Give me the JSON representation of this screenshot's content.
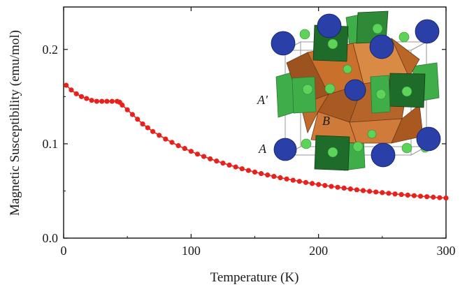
{
  "chart_data": {
    "type": "scatter",
    "title": "",
    "xlabel": "Temperature (K)",
    "ylabel": "Magnetic Susceptibility (emu/mol)",
    "xlim": [
      0,
      300
    ],
    "ylim": [
      0.0,
      0.245
    ],
    "x_ticks": [
      0,
      100,
      200,
      300
    ],
    "x_tick_labels": [
      "0",
      "100",
      "200",
      "300"
    ],
    "y_ticks": [
      0.0,
      0.1,
      0.2
    ],
    "y_tick_labels": [
      "0.0",
      "0.1",
      "0.2"
    ],
    "grid": false,
    "legend": "none",
    "series": [
      {
        "color": "#e8211d",
        "marker": "circle",
        "connected": true,
        "x": [
          2,
          6,
          10,
          14,
          18,
          22,
          26,
          30,
          34,
          38,
          42,
          44,
          46,
          50,
          54,
          58,
          62,
          66,
          70,
          75,
          80,
          85,
          90,
          95,
          100,
          105,
          110,
          115,
          120,
          125,
          130,
          135,
          140,
          145,
          150,
          155,
          160,
          165,
          170,
          175,
          180,
          185,
          190,
          195,
          200,
          205,
          210,
          215,
          220,
          225,
          230,
          235,
          240,
          245,
          250,
          255,
          260,
          265,
          270,
          275,
          280,
          285,
          290,
          295,
          300
        ],
        "y": [
          0.162,
          0.157,
          0.153,
          0.15,
          0.148,
          0.146,
          0.145,
          0.145,
          0.145,
          0.145,
          0.145,
          0.144,
          0.141,
          0.136,
          0.131,
          0.126,
          0.121,
          0.117,
          0.113,
          0.109,
          0.105,
          0.1015,
          0.098,
          0.095,
          0.092,
          0.089,
          0.0865,
          0.084,
          0.0817,
          0.0795,
          0.0774,
          0.0754,
          0.0735,
          0.0717,
          0.07,
          0.0684,
          0.0669,
          0.0654,
          0.064,
          0.0627,
          0.0614,
          0.0602,
          0.059,
          0.0579,
          0.0568,
          0.0558,
          0.0548,
          0.0539,
          0.053,
          0.0521,
          0.0512,
          0.0504,
          0.0496,
          0.0489,
          0.0482,
          0.0475,
          0.0468,
          0.0462,
          0.0456,
          0.045,
          0.0444,
          0.0439,
          0.0434,
          0.0429,
          0.0425
        ]
      }
    ],
    "annotations": [
      "A'",
      "B",
      "A"
    ],
    "inset": "crystal structure: blue spheres, green spheres, green octahedra, orange tetrahedra"
  }
}
